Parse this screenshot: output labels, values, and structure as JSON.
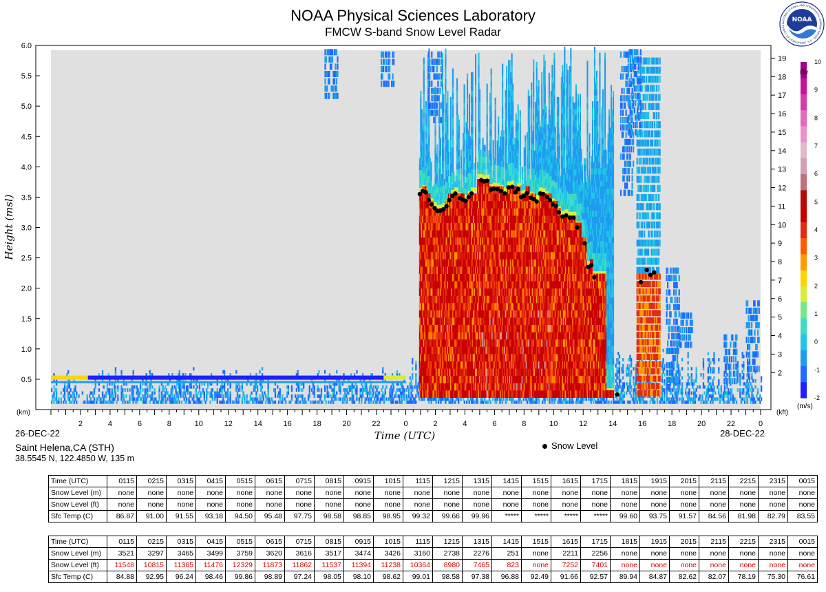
{
  "header": {
    "title": "NOAA Physical Sciences Laboratory",
    "subtitle": "FMCW S-band Snow Level Radar",
    "logo_text": "NOAA",
    "logo_ring": "NATIONAL OCEANIC AND ATMOSPHERIC ADMINISTRATION · U.S. DEPARTMENT OF COMMERCE"
  },
  "station": {
    "name": "Saint Helena,CA (STH)",
    "location": "38.5545 N, 122.4850 W, 135 m"
  },
  "legend": {
    "snow_level": "Snow Level"
  },
  "chart_data": {
    "type": "heatmap",
    "title": "NOAA Physical Sciences Laboratory",
    "subtitle": "FMCW S-band Snow Level Radar",
    "xlabel": "Time (UTC)",
    "ylabel": "Height (msl)",
    "y_unit_left": "(km)",
    "y_unit_right": "(kft)",
    "start_date": "26-DEC-22",
    "end_date": "28-DEC-22",
    "x_range_hours": [
      0,
      48
    ],
    "xticks": [
      {
        "h": 2,
        "label": "2"
      },
      {
        "h": 4,
        "label": "4"
      },
      {
        "h": 6,
        "label": "6"
      },
      {
        "h": 8,
        "label": "8"
      },
      {
        "h": 10,
        "label": "10"
      },
      {
        "h": 12,
        "label": "12"
      },
      {
        "h": 14,
        "label": "14"
      },
      {
        "h": 16,
        "label": "16"
      },
      {
        "h": 18,
        "label": "18"
      },
      {
        "h": 20,
        "label": "20"
      },
      {
        "h": 22,
        "label": "22"
      },
      {
        "h": 24,
        "label": "0"
      },
      {
        "h": 26,
        "label": "2"
      },
      {
        "h": 28,
        "label": "4"
      },
      {
        "h": 30,
        "label": "6"
      },
      {
        "h": 32,
        "label": "8"
      },
      {
        "h": 34,
        "label": "10"
      },
      {
        "h": 36,
        "label": "12"
      },
      {
        "h": 38,
        "label": "14"
      },
      {
        "h": 40,
        "label": "16"
      },
      {
        "h": 42,
        "label": "18"
      },
      {
        "h": 44,
        "label": "20"
      },
      {
        "h": 46,
        "label": "22"
      },
      {
        "h": 48,
        "label": "0"
      }
    ],
    "ylim_km": [
      0,
      6
    ],
    "yticks_km": [
      "0.5",
      "1.0",
      "1.5",
      "2.0",
      "2.5",
      "3.0",
      "3.5",
      "4.0",
      "4.5",
      "5.0",
      "5.5",
      "6.0"
    ],
    "yticks_kft": [
      "2",
      "3",
      "4",
      "5",
      "6",
      "7",
      "8",
      "9",
      "10",
      "11",
      "12",
      "13",
      "14",
      "15",
      "16",
      "17",
      "18",
      "19"
    ],
    "colorbar": {
      "label": "Rv",
      "unit": "(m/s)",
      "range": [
        -2,
        10
      ],
      "ticks": [
        "-2",
        "-1",
        "0",
        "1",
        "2",
        "3",
        "4",
        "5",
        "6",
        "7",
        "8",
        "9",
        "10"
      ],
      "colors": [
        "#2020ff",
        "#1f6bff",
        "#1e9cf0",
        "#22c4e6",
        "#3ddcc2",
        "#79e68a",
        "#d9ec3a",
        "#ffd400",
        "#ff9a00",
        "#ff5a00",
        "#e32a14",
        "#c80000",
        "#b40a0a",
        "#c0707a",
        "#d4a0b0",
        "#e0b8c8",
        "#ec90c8",
        "#e36abe",
        "#d63ab0",
        "#c810a0",
        "#a0008a"
      ]
    },
    "snow_level_points": [
      {
        "t": 24.95,
        "km": 3.55
      },
      {
        "t": 25.15,
        "km": 3.6
      },
      {
        "t": 25.35,
        "km": 3.58
      },
      {
        "t": 25.55,
        "km": 3.45
      },
      {
        "t": 25.75,
        "km": 3.38
      },
      {
        "t": 25.95,
        "km": 3.32
      },
      {
        "t": 26.15,
        "km": 3.27
      },
      {
        "t": 26.35,
        "km": 3.28
      },
      {
        "t": 26.55,
        "km": 3.3
      },
      {
        "t": 26.75,
        "km": 3.35
      },
      {
        "t": 26.95,
        "km": 3.45
      },
      {
        "t": 27.15,
        "km": 3.52
      },
      {
        "t": 27.35,
        "km": 3.56
      },
      {
        "t": 27.65,
        "km": 3.48
      },
      {
        "t": 27.85,
        "km": 3.46
      },
      {
        "t": 28.05,
        "km": 3.44
      },
      {
        "t": 28.25,
        "km": 3.5
      },
      {
        "t": 28.45,
        "km": 3.56
      },
      {
        "t": 29.1,
        "km": 3.78
      },
      {
        "t": 29.3,
        "km": 3.76
      },
      {
        "t": 29.5,
        "km": 3.77
      },
      {
        "t": 29.75,
        "km": 3.62
      },
      {
        "t": 29.95,
        "km": 3.64
      },
      {
        "t": 30.2,
        "km": 3.63
      },
      {
        "t": 30.45,
        "km": 3.6
      },
      {
        "t": 30.7,
        "km": 3.56
      },
      {
        "t": 30.95,
        "km": 3.66
      },
      {
        "t": 31.2,
        "km": 3.67
      },
      {
        "t": 31.4,
        "km": 3.58
      },
      {
        "t": 31.6,
        "km": 3.63
      },
      {
        "t": 31.8,
        "km": 3.5
      },
      {
        "t": 32.0,
        "km": 3.52
      },
      {
        "t": 32.2,
        "km": 3.57
      },
      {
        "t": 32.45,
        "km": 3.49
      },
      {
        "t": 32.65,
        "km": 3.47
      },
      {
        "t": 32.85,
        "km": 3.43
      },
      {
        "t": 33.1,
        "km": 3.56
      },
      {
        "t": 33.3,
        "km": 3.55
      },
      {
        "t": 33.55,
        "km": 3.5
      },
      {
        "t": 33.75,
        "km": 3.45
      },
      {
        "t": 33.95,
        "km": 3.38
      },
      {
        "t": 34.15,
        "km": 3.35
      },
      {
        "t": 34.35,
        "km": 3.25
      },
      {
        "t": 34.6,
        "km": 3.18
      },
      {
        "t": 34.85,
        "km": 3.2
      },
      {
        "t": 35.1,
        "km": 3.16
      },
      {
        "t": 35.35,
        "km": 3.16
      },
      {
        "t": 35.6,
        "km": 3.0
      },
      {
        "t": 36.1,
        "km": 2.74
      },
      {
        "t": 36.35,
        "km": 2.35
      },
      {
        "t": 36.55,
        "km": 2.38
      },
      {
        "t": 36.75,
        "km": 2.18
      },
      {
        "t": 38.3,
        "km": 0.25
      },
      {
        "t": 39.9,
        "km": 2.1
      },
      {
        "t": 40.3,
        "km": 2.3
      },
      {
        "t": 40.55,
        "km": 2.22
      },
      {
        "t": 40.8,
        "km": 2.26
      }
    ]
  },
  "tables": [
    {
      "rows": [
        {
          "label": "Time (UTC)",
          "values": [
            "0115",
            "0215",
            "0315",
            "0415",
            "0515",
            "0615",
            "0715",
            "0815",
            "0915",
            "1015",
            "1115",
            "1215",
            "1315",
            "1415",
            "1515",
            "1615",
            "1715",
            "1815",
            "1915",
            "2015",
            "2115",
            "2215",
            "2315",
            "0015"
          ]
        },
        {
          "label": "Snow Level (m)",
          "values": [
            "none",
            "none",
            "none",
            "none",
            "none",
            "none",
            "none",
            "none",
            "none",
            "none",
            "none",
            "none",
            "none",
            "none",
            "none",
            "none",
            "none",
            "none",
            "none",
            "none",
            "none",
            "none",
            "none",
            "none"
          ]
        },
        {
          "label": "Snow Level (ft)",
          "values": [
            "none",
            "none",
            "none",
            "none",
            "none",
            "none",
            "none",
            "none",
            "none",
            "none",
            "none",
            "none",
            "none",
            "none",
            "none",
            "none",
            "none",
            "none",
            "none",
            "none",
            "none",
            "none",
            "none",
            "none"
          ]
        },
        {
          "label": "Sfc Temp (C)",
          "values": [
            "86.87",
            "91.00",
            "91.55",
            "93.18",
            "94.50",
            "95.48",
            "97.75",
            "98.58",
            "98.85",
            "98.95",
            "99.32",
            "99.66",
            "99.96",
            "*****",
            "*****",
            "*****",
            "*****",
            "99.60",
            "93.75",
            "91.57",
            "84.56",
            "81.98",
            "82.79",
            "83.55"
          ]
        }
      ]
    },
    {
      "rows": [
        {
          "label": "Time (UTC)",
          "values": [
            "0115",
            "0215",
            "0315",
            "0415",
            "0515",
            "0615",
            "0715",
            "0815",
            "0915",
            "1015",
            "1115",
            "1215",
            "1315",
            "1415",
            "1515",
            "1615",
            "1715",
            "1815",
            "1915",
            "2015",
            "2115",
            "2215",
            "2315",
            "0015"
          ]
        },
        {
          "label": "Snow Level (m)",
          "values": [
            "3521",
            "3297",
            "3465",
            "3499",
            "3759",
            "3620",
            "3616",
            "3517",
            "3474",
            "3426",
            "3160",
            "2738",
            "2276",
            "251",
            "none",
            "2211",
            "2256",
            "none",
            "none",
            "none",
            "none",
            "none",
            "none",
            "none"
          ]
        },
        {
          "label": "Snow Level (ft)",
          "red": true,
          "values": [
            "11548",
            "10815",
            "11365",
            "11476",
            "12329",
            "11873",
            "11862",
            "11537",
            "11394",
            "11238",
            "10364",
            "8980",
            "7465",
            "823",
            "none",
            "7252",
            "7401",
            "none",
            "none",
            "none",
            "none",
            "none",
            "none",
            "none"
          ]
        },
        {
          "label": "Sfc Temp (C)",
          "values": [
            "84.88",
            "92.95",
            "96.24",
            "98.46",
            "99.86",
            "98.89",
            "97.24",
            "98.05",
            "98.10",
            "98.62",
            "99.01",
            "98.58",
            "97.38",
            "96.88",
            "92.49",
            "91.66",
            "92.57",
            "89.94",
            "84.87",
            "82.62",
            "82.07",
            "78.19",
            "75.30",
            "76.61"
          ]
        }
      ]
    }
  ]
}
